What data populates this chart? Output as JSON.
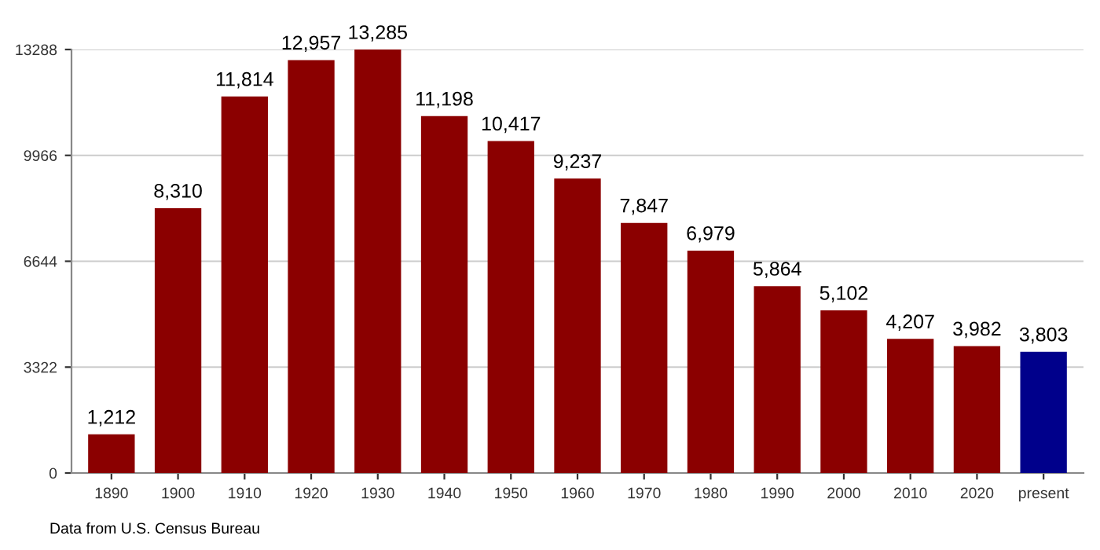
{
  "chart_data": {
    "type": "bar",
    "categories": [
      "1890",
      "1900",
      "1910",
      "1920",
      "1930",
      "1940",
      "1950",
      "1960",
      "1970",
      "1980",
      "1990",
      "2000",
      "2010",
      "2020",
      "present"
    ],
    "values": [
      1212,
      8310,
      11814,
      12957,
      13285,
      11198,
      10417,
      9237,
      7847,
      6979,
      5864,
      5102,
      4207,
      3982,
      3803
    ],
    "value_labels": [
      "1,212",
      "8,310",
      "11,814",
      "12,957",
      "13,285",
      "11,198",
      "10,417",
      "9,237",
      "7,847",
      "6,979",
      "5,864",
      "5,102",
      "4,207",
      "3,982",
      "3,803"
    ],
    "colors": [
      "#8b0000",
      "#8b0000",
      "#8b0000",
      "#8b0000",
      "#8b0000",
      "#8b0000",
      "#8b0000",
      "#8b0000",
      "#8b0000",
      "#8b0000",
      "#8b0000",
      "#8b0000",
      "#8b0000",
      "#8b0000",
      "#00008b"
    ],
    "ylim": [
      0,
      13288
    ],
    "yticks": [
      0,
      3322,
      6644,
      9966,
      13288
    ],
    "grid": "y",
    "annotations": [
      "Data from U.S. Census Bureau"
    ]
  }
}
